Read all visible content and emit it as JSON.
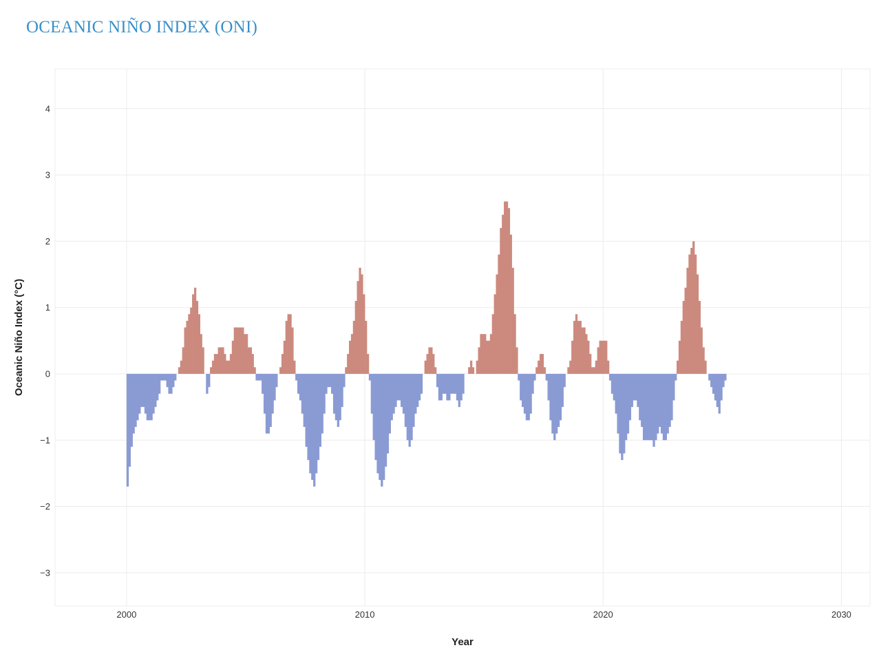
{
  "chart_data": {
    "type": "bar",
    "title": "OCEANIC NIÑO INDEX (ONI)",
    "xlabel": "Year",
    "ylabel": "Oceanic Niño Index (°C)",
    "xlim": [
      1997,
      2031.2
    ],
    "ylim": [
      -3.5,
      4.6
    ],
    "x_ticks": [
      {
        "value": 2000,
        "label": "2000"
      },
      {
        "value": 2010,
        "label": "2010"
      },
      {
        "value": 2020,
        "label": "2020"
      },
      {
        "value": 2030,
        "label": "2030"
      }
    ],
    "y_ticks": [
      {
        "value": 4,
        "label": "4"
      },
      {
        "value": 3,
        "label": "3"
      },
      {
        "value": 2,
        "label": "2"
      },
      {
        "value": 1,
        "label": "1"
      },
      {
        "value": 0,
        "label": "0"
      },
      {
        "value": -1,
        "label": "−1"
      },
      {
        "value": -2,
        "label": "−2"
      },
      {
        "value": -3,
        "label": "−3"
      }
    ],
    "grid": true,
    "colors": {
      "positive": "#cc8a7f",
      "negative": "#8a9bd4",
      "grid": "#ececec",
      "title": "#3a8fc7"
    },
    "series": [
      {
        "x_start": 2000.0,
        "x_step": 0.0833333,
        "values": [
          -1.7,
          -1.4,
          -1.1,
          -0.9,
          -0.8,
          -0.7,
          -0.6,
          -0.5,
          -0.5,
          -0.6,
          -0.7,
          -0.7,
          -0.7,
          -0.6,
          -0.5,
          -0.4,
          -0.3,
          -0.1,
          -0.1,
          -0.1,
          -0.2,
          -0.3,
          -0.3,
          -0.2,
          -0.1,
          0.0,
          0.1,
          0.2,
          0.4,
          0.7,
          0.8,
          0.9,
          1.0,
          1.2,
          1.3,
          1.1,
          0.9,
          0.6,
          0.4,
          0.0,
          -0.3,
          -0.2,
          0.1,
          0.2,
          0.3,
          0.3,
          0.4,
          0.4,
          0.4,
          0.3,
          0.2,
          0.2,
          0.3,
          0.5,
          0.7,
          0.7,
          0.7,
          0.7,
          0.7,
          0.6,
          0.6,
          0.4,
          0.4,
          0.3,
          0.1,
          -0.1,
          -0.1,
          -0.1,
          -0.3,
          -0.6,
          -0.9,
          -0.9,
          -0.8,
          -0.6,
          -0.4,
          -0.2,
          0.0,
          0.1,
          0.3,
          0.5,
          0.8,
          0.9,
          0.9,
          0.7,
          0.2,
          -0.1,
          -0.3,
          -0.4,
          -0.6,
          -0.8,
          -1.1,
          -1.3,
          -1.5,
          -1.6,
          -1.7,
          -1.5,
          -1.3,
          -1.1,
          -0.9,
          -0.6,
          -0.3,
          -0.2,
          -0.2,
          -0.3,
          -0.6,
          -0.7,
          -0.8,
          -0.7,
          -0.5,
          -0.2,
          0.1,
          0.3,
          0.5,
          0.6,
          0.8,
          1.1,
          1.4,
          1.6,
          1.5,
          1.2,
          0.8,
          0.3,
          -0.1,
          -0.6,
          -1.0,
          -1.3,
          -1.5,
          -1.6,
          -1.7,
          -1.6,
          -1.4,
          -1.2,
          -0.9,
          -0.7,
          -0.6,
          -0.5,
          -0.4,
          -0.4,
          -0.5,
          -0.6,
          -0.8,
          -1.0,
          -1.1,
          -1.0,
          -0.8,
          -0.6,
          -0.5,
          -0.4,
          -0.3,
          0.0,
          0.2,
          0.3,
          0.4,
          0.4,
          0.3,
          0.1,
          -0.2,
          -0.4,
          -0.4,
          -0.3,
          -0.3,
          -0.4,
          -0.4,
          -0.3,
          -0.3,
          -0.3,
          -0.4,
          -0.5,
          -0.4,
          -0.3,
          0.0,
          0.0,
          0.1,
          0.2,
          0.1,
          0.0,
          0.2,
          0.4,
          0.6,
          0.6,
          0.6,
          0.5,
          0.5,
          0.6,
          0.9,
          1.2,
          1.5,
          1.8,
          2.2,
          2.4,
          2.6,
          2.6,
          2.5,
          2.1,
          1.6,
          0.9,
          0.4,
          -0.1,
          -0.4,
          -0.5,
          -0.6,
          -0.7,
          -0.7,
          -0.6,
          -0.3,
          -0.1,
          0.1,
          0.2,
          0.3,
          0.3,
          0.1,
          -0.1,
          -0.4,
          -0.7,
          -0.9,
          -1.0,
          -0.9,
          -0.8,
          -0.7,
          -0.5,
          -0.2,
          0.0,
          0.1,
          0.2,
          0.5,
          0.8,
          0.9,
          0.8,
          0.8,
          0.7,
          0.7,
          0.6,
          0.5,
          0.3,
          0.1,
          0.1,
          0.2,
          0.4,
          0.5,
          0.5,
          0.5,
          0.5,
          0.2,
          -0.1,
          -0.3,
          -0.4,
          -0.6,
          -0.9,
          -1.2,
          -1.3,
          -1.2,
          -1.0,
          -0.9,
          -0.7,
          -0.5,
          -0.4,
          -0.4,
          -0.5,
          -0.7,
          -0.8,
          -1.0,
          -1.0,
          -1.0,
          -1.0,
          -1.0,
          -1.1,
          -1.0,
          -0.9,
          -0.8,
          -0.9,
          -1.0,
          -1.0,
          -0.9,
          -0.8,
          -0.7,
          -0.4,
          -0.1,
          0.2,
          0.5,
          0.8,
          1.1,
          1.3,
          1.6,
          1.8,
          1.9,
          2.0,
          1.8,
          1.5,
          1.1,
          0.7,
          0.4,
          0.2,
          0.0,
          -0.1,
          -0.2,
          -0.3,
          -0.4,
          -0.5,
          -0.6,
          -0.4,
          -0.2,
          -0.1
        ]
      }
    ]
  }
}
